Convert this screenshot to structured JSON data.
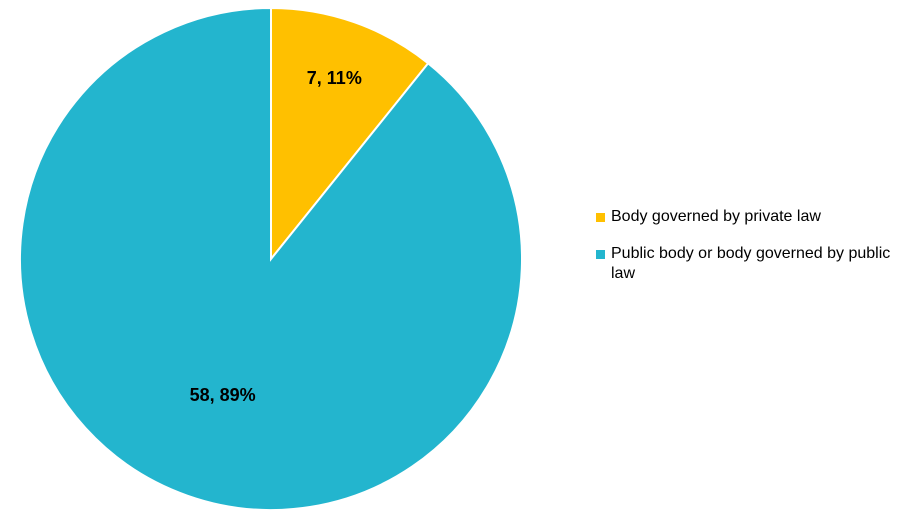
{
  "chart_data": {
    "type": "pie",
    "title": "",
    "slices": [
      {
        "label": "Body governed by private law",
        "value": 7,
        "percent": 11,
        "data_label": "7, 11%",
        "color": "#FFC000"
      },
      {
        "label": "Public body or body governed by public law",
        "value": 58,
        "percent": 89,
        "data_label": "58, 89%",
        "color": "#23B5CE"
      }
    ],
    "legend_position": "right",
    "start_angle": "12 o'clock",
    "direction": "clockwise"
  }
}
